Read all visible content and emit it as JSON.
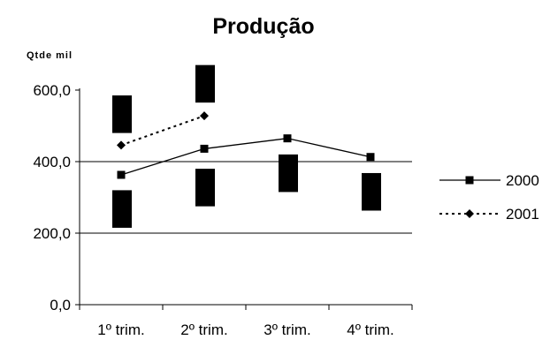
{
  "chart_data": {
    "type": "line",
    "title": "Produção",
    "ylabel": "Qtde mil",
    "xlabel": "",
    "categories": [
      "1º trim.",
      "2º trim.",
      "3º trim.",
      "4º trim."
    ],
    "ylim": [
      0,
      600
    ],
    "yticks": [
      "0,0",
      "200,0",
      "400,0",
      "600,0"
    ],
    "gridlines": [
      200,
      400
    ],
    "legend_position": "right",
    "series": [
      {
        "name": "2000",
        "values": [
          363,
          436,
          465,
          413
        ],
        "line_style": "solid",
        "marker": "square",
        "color": "#000000"
      },
      {
        "name": "2001",
        "values": [
          446,
          528,
          null,
          null
        ],
        "line_style": "dotted",
        "marker": "diamond",
        "color": "#000000"
      }
    ],
    "annotations": {
      "value_label_blocks": [
        {
          "category": "1º trim.",
          "series": "2001",
          "y_top": 585,
          "y_bottom": 480
        },
        {
          "category": "1º trim.",
          "series": "2000",
          "y_top": 320,
          "y_bottom": 215
        },
        {
          "category": "2º trim.",
          "series": "2001",
          "y_top": 670,
          "y_bottom": 565
        },
        {
          "category": "2º trim.",
          "series": "2000",
          "y_top": 380,
          "y_bottom": 275
        },
        {
          "category": "3º trim.",
          "series": "2000",
          "y_top": 420,
          "y_bottom": 315
        },
        {
          "category": "4º trim.",
          "series": "2000",
          "y_top": 368,
          "y_bottom": 263
        }
      ],
      "block_color": "#000000"
    }
  }
}
